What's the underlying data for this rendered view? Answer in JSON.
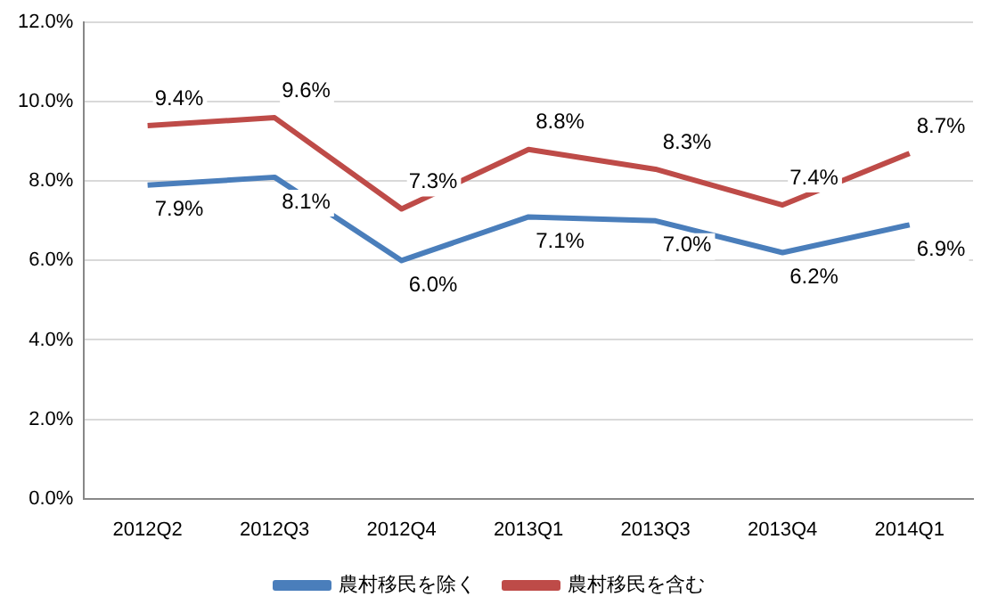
{
  "chart_data": {
    "type": "line",
    "categories": [
      "2012Q2",
      "2012Q3",
      "2012Q4",
      "2013Q1",
      "2013Q3",
      "2013Q4",
      "2014Q1"
    ],
    "series": [
      {
        "name": "農村移民を除く",
        "color": "#4a7ebb",
        "values": [
          7.9,
          8.1,
          6.0,
          7.1,
          7.0,
          6.2,
          6.9
        ],
        "value_labels": [
          "7.9%",
          "8.1%",
          "6.0%",
          "7.1%",
          "7.0%",
          "6.2%",
          "6.9%"
        ]
      },
      {
        "name": "農村移民を含む",
        "color": "#be4b48",
        "values": [
          9.4,
          9.6,
          7.3,
          8.8,
          8.3,
          7.4,
          8.7
        ],
        "value_labels": [
          "9.4%",
          "9.6%",
          "7.3%",
          "8.8%",
          "8.3%",
          "7.4%",
          "8.7%"
        ]
      }
    ],
    "ylim": [
      0,
      12
    ],
    "yticks": [
      {
        "value": 0,
        "label": "0.0%"
      },
      {
        "value": 2,
        "label": "2.0%"
      },
      {
        "value": 4,
        "label": "4.0%"
      },
      {
        "value": 6,
        "label": "6.0%"
      },
      {
        "value": 8,
        "label": "8.0%"
      },
      {
        "value": 10,
        "label": "10.0%"
      },
      {
        "value": 12,
        "label": "12.0%"
      }
    ],
    "grid": "y",
    "legend": "bottom",
    "marker": "none",
    "line_style": "solid"
  }
}
